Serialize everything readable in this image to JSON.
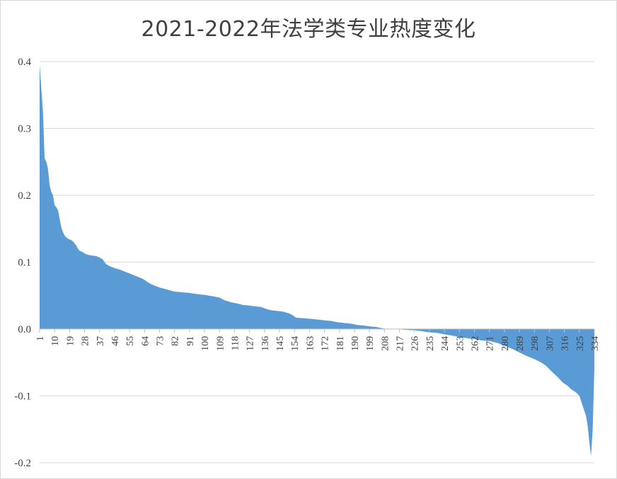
{
  "chart_data": {
    "type": "area",
    "title": "2021-2022年法学类专业热度变化",
    "xlabel": "",
    "ylabel": "",
    "x_range": [
      1,
      334
    ],
    "x_tick_labels": [
      "1",
      "10",
      "19",
      "28",
      "37",
      "46",
      "55",
      "64",
      "73",
      "82",
      "91",
      "100",
      "109",
      "118",
      "127",
      "136",
      "145",
      "154",
      "163",
      "172",
      "181",
      "190",
      "199",
      "208",
      "217",
      "226",
      "235",
      "244",
      "253",
      "262",
      "271",
      "280",
      "289",
      "298",
      "307",
      "316",
      "325",
      "334"
    ],
    "y_ticks": [
      0.4,
      0.3,
      0.2,
      0.1,
      0.0,
      -0.1,
      -0.2
    ],
    "y_tick_labels": [
      "0.4",
      "0.3",
      "0.2",
      "0.1",
      "0.0",
      "-0.1",
      "-0.2"
    ],
    "ylim": [
      -0.2,
      0.4
    ],
    "grid": true,
    "legend": "none",
    "color": "#5b9bd5",
    "series": [
      {
        "points": [
          [
            1,
            0.395
          ],
          [
            2,
            0.36
          ],
          [
            3,
            0.325
          ],
          [
            4,
            0.255
          ],
          [
            5,
            0.25
          ],
          [
            6,
            0.24
          ],
          [
            7,
            0.215
          ],
          [
            8,
            0.205
          ],
          [
            9,
            0.2
          ],
          [
            10,
            0.185
          ],
          [
            11,
            0.182
          ],
          [
            12,
            0.178
          ],
          [
            13,
            0.165
          ],
          [
            14,
            0.152
          ],
          [
            15,
            0.145
          ],
          [
            16,
            0.14
          ],
          [
            17,
            0.137
          ],
          [
            18,
            0.135
          ],
          [
            19,
            0.134
          ],
          [
            20,
            0.133
          ],
          [
            21,
            0.131
          ],
          [
            22,
            0.128
          ],
          [
            23,
            0.125
          ],
          [
            24,
            0.12
          ],
          [
            25,
            0.117
          ],
          [
            26,
            0.116
          ],
          [
            27,
            0.115
          ],
          [
            28,
            0.113
          ],
          [
            30,
            0.111
          ],
          [
            32,
            0.11
          ],
          [
            35,
            0.109
          ],
          [
            37,
            0.107
          ],
          [
            39,
            0.104
          ],
          [
            40,
            0.1
          ],
          [
            41,
            0.097
          ],
          [
            43,
            0.094
          ],
          [
            46,
            0.091
          ],
          [
            49,
            0.089
          ],
          [
            52,
            0.086
          ],
          [
            55,
            0.083
          ],
          [
            58,
            0.08
          ],
          [
            60,
            0.078
          ],
          [
            63,
            0.075
          ],
          [
            66,
            0.07
          ],
          [
            68,
            0.067
          ],
          [
            70,
            0.065
          ],
          [
            73,
            0.062
          ],
          [
            76,
            0.06
          ],
          [
            79,
            0.058
          ],
          [
            82,
            0.056
          ],
          [
            86,
            0.055
          ],
          [
            91,
            0.054
          ],
          [
            96,
            0.052
          ],
          [
            100,
            0.051
          ],
          [
            105,
            0.049
          ],
          [
            109,
            0.047
          ],
          [
            112,
            0.043
          ],
          [
            116,
            0.04
          ],
          [
            120,
            0.038
          ],
          [
            123,
            0.036
          ],
          [
            127,
            0.035
          ],
          [
            130,
            0.034
          ],
          [
            134,
            0.033
          ],
          [
            137,
            0.03
          ],
          [
            140,
            0.028
          ],
          [
            144,
            0.027
          ],
          [
            147,
            0.026
          ],
          [
            150,
            0.024
          ],
          [
            152,
            0.022
          ],
          [
            155,
            0.017
          ],
          [
            160,
            0.016
          ],
          [
            165,
            0.015
          ],
          [
            172,
            0.013
          ],
          [
            176,
            0.012
          ],
          [
            180,
            0.01
          ],
          [
            184,
            0.009
          ],
          [
            188,
            0.008
          ],
          [
            192,
            0.006
          ],
          [
            196,
            0.005
          ],
          [
            199,
            0.004
          ],
          [
            203,
            0.003
          ],
          [
            207,
            0.001
          ],
          [
            210,
            0.0
          ],
          [
            215,
            0.0
          ],
          [
            220,
            -0.001
          ],
          [
            226,
            -0.002
          ],
          [
            230,
            -0.003
          ],
          [
            235,
            -0.005
          ],
          [
            240,
            -0.006
          ],
          [
            244,
            -0.008
          ],
          [
            249,
            -0.01
          ],
          [
            253,
            -0.012
          ],
          [
            258,
            -0.014
          ],
          [
            262,
            -0.015
          ],
          [
            266,
            -0.017
          ],
          [
            271,
            -0.018
          ],
          [
            276,
            -0.021
          ],
          [
            280,
            -0.025
          ],
          [
            285,
            -0.03
          ],
          [
            289,
            -0.035
          ],
          [
            293,
            -0.04
          ],
          [
            298,
            -0.045
          ],
          [
            302,
            -0.05
          ],
          [
            305,
            -0.055
          ],
          [
            307,
            -0.06
          ],
          [
            309,
            -0.065
          ],
          [
            312,
            -0.072
          ],
          [
            315,
            -0.08
          ],
          [
            318,
            -0.085
          ],
          [
            320,
            -0.09
          ],
          [
            323,
            -0.095
          ],
          [
            325,
            -0.1
          ],
          [
            327,
            -0.115
          ],
          [
            329,
            -0.13
          ],
          [
            330,
            -0.145
          ],
          [
            331,
            -0.17
          ],
          [
            332,
            -0.19
          ],
          [
            333,
            -0.15
          ],
          [
            334,
            -0.06
          ]
        ]
      }
    ]
  }
}
